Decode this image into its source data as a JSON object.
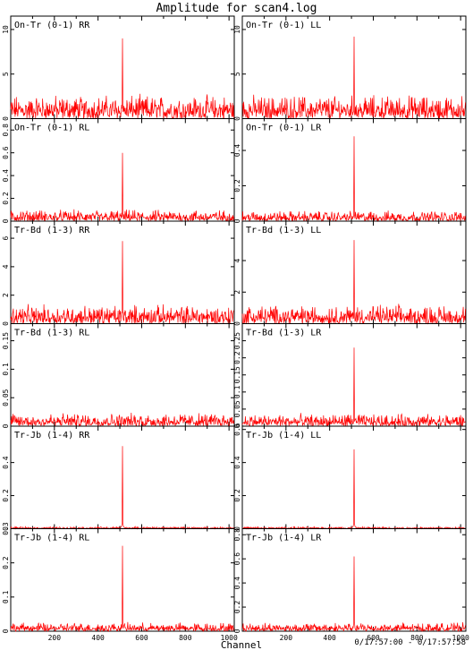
{
  "title": "Amplitude for scan4.log",
  "xlabel": "Channel",
  "time_range": "0/17:57:00 - 0/17:57:58",
  "colors": {
    "trace": "#ff0000",
    "frame": "#000000",
    "background": "#ffffff"
  },
  "chart_data": [
    {
      "type": "line",
      "title": "On-Tr (0-1) RR",
      "x_range": [
        0,
        1024
      ],
      "ylim": [
        0,
        11.5
      ],
      "y_ticks": [
        0,
        5,
        10
      ],
      "x_ticks": [
        200,
        400,
        600,
        800,
        1000
      ],
      "noise_level": 0.25,
      "peak": {
        "channel": 512,
        "value": 9.0
      },
      "grid": false
    },
    {
      "type": "line",
      "title": "On-Tr (0-1) LL",
      "x_range": [
        0,
        1024
      ],
      "ylim": [
        0,
        11.5
      ],
      "y_ticks": [
        0,
        5,
        10
      ],
      "x_ticks": [
        200,
        400,
        600,
        800,
        1000
      ],
      "noise_level": 0.25,
      "peak": {
        "channel": 512,
        "value": 9.2
      },
      "grid": false
    },
    {
      "type": "line",
      "title": "On-Tr (0-1) RL",
      "x_range": [
        0,
        1024
      ],
      "ylim": [
        0,
        0.9
      ],
      "y_ticks": [
        0,
        0.2,
        0.4,
        0.6,
        0.8
      ],
      "x_ticks": [
        200,
        400,
        600,
        800,
        1000
      ],
      "noise_level": 0.12,
      "peak": {
        "channel": 512,
        "value": 0.6
      },
      "grid": false
    },
    {
      "type": "line",
      "title": "On-Tr (0-1) LR",
      "x_range": [
        0,
        1024
      ],
      "ylim": [
        0,
        0.58
      ],
      "y_ticks": [
        0,
        0.2,
        0.4
      ],
      "x_ticks": [
        200,
        400,
        600,
        800,
        1000
      ],
      "noise_level": 0.11,
      "peak": {
        "channel": 512,
        "value": 0.48
      },
      "grid": false
    },
    {
      "type": "line",
      "title": "Tr-Bd (1-3) RR",
      "x_range": [
        0,
        1024
      ],
      "ylim": [
        0,
        7.2
      ],
      "y_ticks": [
        0,
        2,
        4,
        6
      ],
      "x_ticks": [
        200,
        400,
        600,
        800,
        1000
      ],
      "noise_level": 0.2,
      "peak": {
        "channel": 512,
        "value": 5.8
      },
      "grid": false
    },
    {
      "type": "line",
      "title": "Tr-Bd (1-3) LL",
      "x_range": [
        0,
        1024
      ],
      "ylim": [
        0,
        6.5
      ],
      "y_ticks": [
        0,
        2,
        4
      ],
      "x_ticks": [
        200,
        400,
        600,
        800,
        1000
      ],
      "noise_level": 0.2,
      "peak": {
        "channel": 512,
        "value": 5.3
      },
      "grid": false
    },
    {
      "type": "line",
      "title": "Tr-Bd (1-3) RL",
      "x_range": [
        0,
        1024
      ],
      "ylim": [
        0,
        0.18
      ],
      "y_ticks": [
        0,
        0.05,
        0.1,
        0.15
      ],
      "x_ticks": [
        200,
        400,
        600,
        800,
        1000
      ],
      "noise_level": 0.14,
      "peak": null,
      "grid": false
    },
    {
      "type": "line",
      "title": "Tr-Bd (1-3) LR",
      "x_range": [
        0,
        1024
      ],
      "ylim": [
        0,
        0.3
      ],
      "y_ticks": [
        0,
        0.05,
        0.1,
        0.15,
        0.2,
        0.25
      ],
      "x_ticks": [
        200,
        400,
        600,
        800,
        1000
      ],
      "noise_level": 0.13,
      "peak": {
        "channel": 512,
        "value": 0.23
      },
      "grid": false
    },
    {
      "type": "line",
      "title": "Tr-Jb (1-4) RR",
      "x_range": [
        0,
        1024
      ],
      "ylim": [
        0,
        0.62
      ],
      "y_ticks": [
        0,
        0.2,
        0.4
      ],
      "x_ticks": [
        200,
        400,
        600,
        800,
        1000
      ],
      "noise_level": 0.02,
      "peak": {
        "channel": 512,
        "value": 0.5
      },
      "grid": false
    },
    {
      "type": "line",
      "title": "Tr-Jb (1-4) LL",
      "x_range": [
        0,
        1024
      ],
      "ylim": [
        0,
        0.62
      ],
      "y_ticks": [
        0,
        0.2,
        0.4,
        0.6
      ],
      "x_ticks": [
        200,
        400,
        600,
        800,
        1000
      ],
      "noise_level": 0.02,
      "peak": {
        "channel": 512,
        "value": 0.48
      },
      "grid": false
    },
    {
      "type": "line",
      "title": "Tr-Jb (1-4) RL",
      "x_range": [
        0,
        1024
      ],
      "ylim": [
        0,
        0.3
      ],
      "y_ticks": [
        0,
        0.1,
        0.2,
        0.3
      ],
      "x_ticks": [
        200,
        400,
        600,
        800,
        1000
      ],
      "noise_level": 0.09,
      "peak": {
        "channel": 512,
        "value": 0.25
      },
      "grid": false
    },
    {
      "type": "line",
      "title": "Tr-Jb (1-4) LR",
      "x_range": [
        0,
        1024
      ],
      "ylim": [
        0,
        0.85
      ],
      "y_ticks": [
        0,
        0.2,
        0.4,
        0.6,
        0.8
      ],
      "x_ticks": [
        200,
        400,
        600,
        800,
        1000
      ],
      "noise_level": 0.09,
      "peak": {
        "channel": 512,
        "value": 0.62
      },
      "grid": false
    }
  ]
}
